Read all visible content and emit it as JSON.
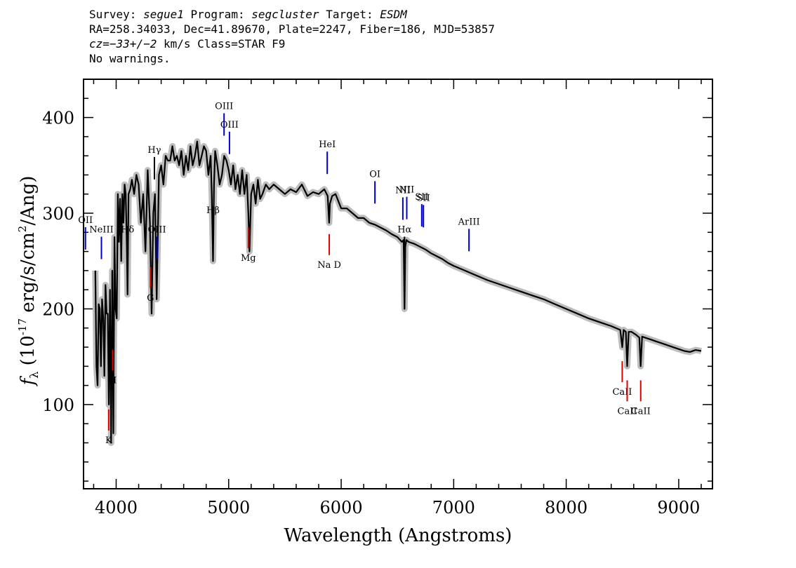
{
  "header": {
    "survey_label": "Survey:",
    "survey": "segue1",
    "program_label": "Program:",
    "program": "segcluster",
    "target_label": "Target:",
    "target": "ESDM",
    "line2": "RA=258.34033, Dec=41.89670, Plate=2247, Fiber=186, MJD=53857",
    "cz_label": "cz=",
    "cz_value": "−33+/−2",
    "cz_unit": " km/s Class=STAR F9",
    "line4": "No warnings."
  },
  "chart_data": {
    "type": "line",
    "xlabel": "Wavelength (Angstroms)",
    "ylabel": "f_λ (10^-17 erg/s/cm^2/Ang)",
    "xlim": [
      3710,
      9300
    ],
    "ylim": [
      12,
      440
    ],
    "xticks": [
      4000,
      5000,
      6000,
      7000,
      8000,
      9000
    ],
    "yticks": [
      100,
      200,
      300,
      400
    ],
    "series": [
      {
        "type": "line",
        "color": "#000000",
        "x": [
          3815,
          3825,
          3835,
          3845,
          3855,
          3865,
          3875,
          3885,
          3895,
          3905,
          3915,
          3925,
          3935,
          3945,
          3955,
          3965,
          3975,
          3985,
          3995,
          4005,
          4015,
          4025,
          4035,
          4045,
          4055,
          4065,
          4075,
          4085,
          4095,
          4101,
          4110,
          4125,
          4140,
          4160,
          4180,
          4200,
          4220,
          4240,
          4260,
          4280,
          4300,
          4315,
          4330,
          4345,
          4360,
          4380,
          4400,
          4420,
          4440,
          4460,
          4480,
          4500,
          4520,
          4540,
          4560,
          4580,
          4600,
          4620,
          4640,
          4660,
          4680,
          4700,
          4720,
          4740,
          4760,
          4780,
          4800,
          4820,
          4840,
          4850,
          4861,
          4870,
          4880,
          4900,
          4920,
          4940,
          4960,
          4980,
          5000,
          5020,
          5040,
          5060,
          5080,
          5100,
          5120,
          5140,
          5160,
          5175,
          5185,
          5200,
          5220,
          5240,
          5260,
          5280,
          5300,
          5330,
          5360,
          5400,
          5450,
          5500,
          5550,
          5600,
          5650,
          5700,
          5750,
          5800,
          5850,
          5880,
          5893,
          5900,
          5920,
          5950,
          6000,
          6050,
          6100,
          6150,
          6200,
          6250,
          6300,
          6350,
          6400,
          6450,
          6500,
          6540,
          6555,
          6563,
          6570,
          6580,
          6600,
          6650,
          6700,
          6750,
          6800,
          6850,
          6900,
          6950,
          7000,
          7100,
          7200,
          7300,
          7400,
          7500,
          7600,
          7700,
          7800,
          7900,
          8000,
          8100,
          8200,
          8300,
          8400,
          8480,
          8498,
          8510,
          8530,
          8542,
          8555,
          8580,
          8620,
          8650,
          8662,
          8675,
          8700,
          8750,
          8800,
          8850,
          8900,
          8950,
          9000,
          9050,
          9100,
          9150,
          9200
        ],
        "y": [
          240,
          140,
          120,
          205,
          200,
          140,
          210,
          190,
          130,
          225,
          195,
          195,
          100,
          220,
          60,
          240,
          70,
          275,
          200,
          190,
          320,
          270,
          315,
          250,
          320,
          290,
          330,
          320,
          265,
          215,
          320,
          325,
          335,
          320,
          340,
          330,
          290,
          320,
          260,
          345,
          290,
          195,
          300,
          320,
          210,
          340,
          350,
          330,
          360,
          355,
          355,
          370,
          355,
          360,
          350,
          365,
          340,
          360,
          345,
          370,
          350,
          360,
          375,
          350,
          360,
          370,
          365,
          340,
          360,
          320,
          250,
          330,
          365,
          350,
          330,
          340,
          360,
          355,
          345,
          330,
          350,
          325,
          340,
          320,
          345,
          320,
          340,
          300,
          260,
          320,
          330,
          310,
          335,
          315,
          320,
          330,
          325,
          330,
          325,
          320,
          325,
          322,
          330,
          318,
          322,
          320,
          325,
          318,
          290,
          310,
          318,
          320,
          305,
          305,
          300,
          295,
          295,
          290,
          288,
          285,
          282,
          278,
          275,
          270,
          272,
          200,
          265,
          272,
          270,
          268,
          265,
          262,
          258,
          255,
          252,
          248,
          245,
          240,
          235,
          230,
          226,
          222,
          218,
          214,
          210,
          205,
          200,
          195,
          190,
          186,
          182,
          178,
          160,
          178,
          176,
          140,
          176,
          176,
          173,
          170,
          140,
          171,
          170,
          168,
          166,
          164,
          162,
          160,
          158,
          156,
          155,
          157,
          156
        ]
      },
      {
        "type": "line",
        "color": "#bdbdbd",
        "name": "",
        "note": "noise band"
      }
    ],
    "annotations_emission": [
      {
        "label": "OII",
        "x": 3727
      },
      {
        "label": "NeIII",
        "x": 3869
      },
      {
        "label": "Hδ",
        "x": 4101
      },
      {
        "label": "Hγ",
        "x": 4340
      },
      {
        "label": "OIII",
        "x": 4363
      },
      {
        "label": "Hβ",
        "x": 4861
      },
      {
        "label": "OIII",
        "x": 4959
      },
      {
        "label": "OIII",
        "x": 5007
      },
      {
        "label": "HeI",
        "x": 5876
      },
      {
        "label": "OI",
        "x": 6300
      },
      {
        "label": "NII",
        "x": 6548
      },
      {
        "label": "Hα",
        "x": 6563
      },
      {
        "label": "NII",
        "x": 6583
      },
      {
        "label": "SII",
        "x": 6716
      },
      {
        "label": "SII",
        "x": 6731
      },
      {
        "label": "ArIII",
        "x": 7136
      }
    ],
    "annotations_absorption": [
      {
        "label": "K",
        "x": 3934
      },
      {
        "label": "H",
        "x": 3969
      },
      {
        "label": "G",
        "x": 4305
      },
      {
        "label": "Mg",
        "x": 5175
      },
      {
        "label": "Na D",
        "x": 5894
      },
      {
        "label": "CaII",
        "x": 8498
      },
      {
        "label": "CaII",
        "x": 8542
      },
      {
        "label": "CaII",
        "x": 8662
      }
    ],
    "emission_color": "#0000cc",
    "absorption_color": "#dd0000",
    "hline_color": "#000000"
  }
}
